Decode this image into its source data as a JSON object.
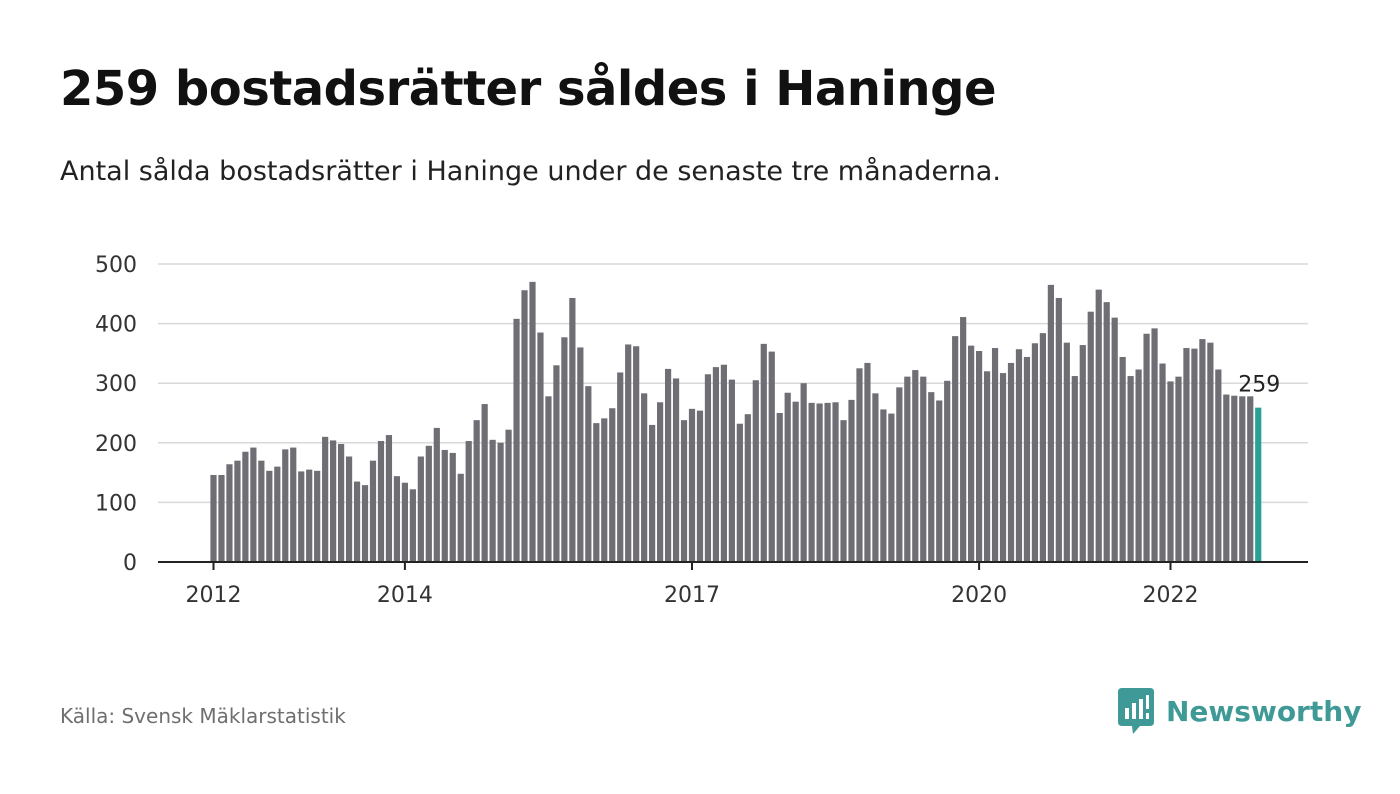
{
  "header": {
    "title": "259 bostadsrätter såldes i Haninge",
    "subtitle": "Antal sålda bostadsrätter i Haninge under de senaste tre månaderna."
  },
  "footer": {
    "source": "Källa: Svensk Mäklarstatistik",
    "brand": "Newsworthy"
  },
  "colors": {
    "bar": "#6f6e74",
    "highlight": "#2aa197",
    "grid": "#d9d9d9",
    "axis": "#222222",
    "brand": "#3f9a97"
  },
  "chart_data": {
    "type": "bar",
    "title": "259 bostadsrätter såldes i Haninge",
    "subtitle": "Antal sålda bostadsrätter i Haninge under de senaste tre månaderna.",
    "xlabel": "",
    "ylabel": "",
    "ylim": [
      0,
      500
    ],
    "yticks": [
      0,
      100,
      200,
      300,
      400,
      500
    ],
    "grid": true,
    "legend": "none",
    "x_start": "2011-12",
    "xticks": [
      {
        "label": "2012",
        "x": "2011-12"
      },
      {
        "label": "2014",
        "x": "2013-12"
      },
      {
        "label": "2017",
        "x": "2016-12"
      },
      {
        "label": "2020",
        "x": "2019-12"
      },
      {
        "label": "2022",
        "x": "2021-12"
      }
    ],
    "values": [
      146,
      146,
      164,
      170,
      185,
      192,
      170,
      153,
      160,
      189,
      192,
      152,
      155,
      153,
      210,
      204,
      198,
      177,
      135,
      129,
      170,
      203,
      213,
      144,
      133,
      122,
      177,
      195,
      225,
      188,
      183,
      148,
      203,
      238,
      265,
      205,
      200,
      222,
      408,
      456,
      470,
      385,
      278,
      330,
      377,
      443,
      360,
      295,
      233,
      241,
      258,
      318,
      365,
      362,
      283,
      230,
      268,
      324,
      308,
      238,
      257,
      254,
      315,
      327,
      331,
      306,
      232,
      248,
      305,
      366,
      353,
      250,
      284,
      269,
      300,
      267,
      266,
      267,
      268,
      238,
      272,
      325,
      334,
      283,
      256,
      249,
      293,
      311,
      322,
      311,
      285,
      271,
      304,
      379,
      411,
      363,
      354,
      320,
      359,
      317,
      334,
      357,
      344,
      367,
      384,
      465,
      443,
      368,
      312,
      364,
      420,
      457,
      436,
      410,
      344,
      312,
      323,
      383,
      392,
      333,
      303,
      311,
      359,
      358,
      374,
      368,
      323,
      281,
      279,
      278,
      278,
      259
    ],
    "highlight_index": 131,
    "value_label": "259"
  }
}
